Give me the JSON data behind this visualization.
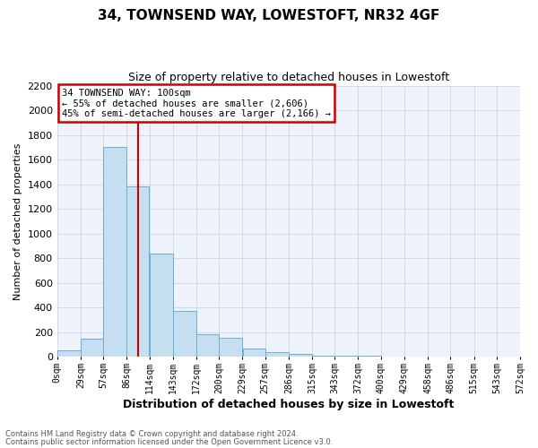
{
  "title": "34, TOWNSEND WAY, LOWESTOFT, NR32 4GF",
  "subtitle": "Size of property relative to detached houses in Lowestoft",
  "xlabel": "Distribution of detached houses by size in Lowestoft",
  "ylabel": "Number of detached properties",
  "annotation_title": "34 TOWNSEND WAY: 100sqm",
  "annotation_line1": "← 55% of detached houses are smaller (2,606)",
  "annotation_line2": "45% of semi-detached houses are larger (2,166) →",
  "property_size": 100,
  "bin_width": 29,
  "bin_edges": [
    0,
    29,
    57,
    86,
    114,
    143,
    172,
    200,
    229,
    257,
    286,
    315,
    343,
    372,
    400,
    429,
    458,
    486,
    515,
    543,
    572
  ],
  "bin_labels": [
    "0sqm",
    "29sqm",
    "57sqm",
    "86sqm",
    "114sqm",
    "143sqm",
    "172sqm",
    "200sqm",
    "229sqm",
    "257sqm",
    "286sqm",
    "315sqm",
    "343sqm",
    "372sqm",
    "400sqm",
    "429sqm",
    "458sqm",
    "486sqm",
    "515sqm",
    "543sqm",
    "572sqm"
  ],
  "counts": [
    50,
    150,
    1700,
    1380,
    840,
    370,
    180,
    155,
    70,
    35,
    20,
    10,
    8,
    5,
    3,
    2,
    1,
    1,
    0,
    0
  ],
  "bar_color": "#c5dff0",
  "bar_edge_color": "#6aaed6",
  "vline_color": "#cc0000",
  "annotation_box_color": "#cc0000",
  "grid_color": "#d0d8e8",
  "background_color": "#eef2fa",
  "footer_line1": "Contains HM Land Registry data © Crown copyright and database right 2024.",
  "footer_line2": "Contains public sector information licensed under the Open Government Licence v3.0.",
  "ylim": [
    0,
    2200
  ],
  "yticks": [
    0,
    200,
    400,
    600,
    800,
    1000,
    1200,
    1400,
    1600,
    1800,
    2000,
    2200
  ]
}
